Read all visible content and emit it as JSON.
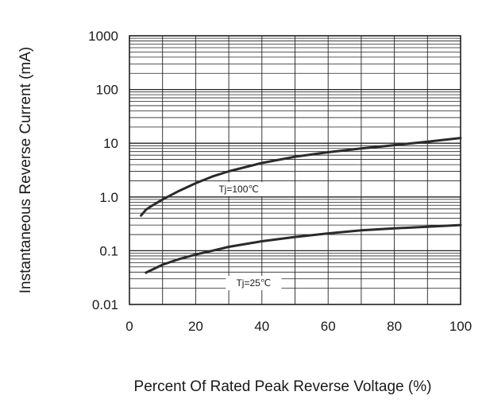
{
  "chart_data": {
    "type": "line",
    "title": "",
    "xlabel": "Percent  Of  Rated  Peak Reverse  Voltage (%)",
    "ylabel": "Instantaneous  Reverse Current (mA)",
    "x_scale": "linear",
    "y_scale": "log",
    "xlim": [
      0,
      100
    ],
    "ylim": [
      0.01,
      1000
    ],
    "grid": true,
    "x_ticks": [
      "0",
      "20",
      "40",
      "60",
      "80",
      "100"
    ],
    "y_ticks": [
      "0.01",
      "0.1",
      "1.0",
      "10",
      "100",
      "1000"
    ],
    "series": [
      {
        "name": "Tj=100℃",
        "x": [
          3.5,
          5,
          7,
          10,
          15,
          20,
          25,
          30,
          40,
          50,
          60,
          70,
          80,
          90,
          100
        ],
        "y": [
          0.45,
          0.58,
          0.7,
          0.9,
          1.3,
          1.8,
          2.4,
          3.0,
          4.3,
          5.6,
          6.8,
          8.0,
          9.2,
          10.7,
          12.5
        ]
      },
      {
        "name": "Tj=25℃",
        "x": [
          5,
          10,
          15,
          20,
          25,
          30,
          40,
          50,
          60,
          70,
          80,
          90,
          100
        ],
        "y": [
          0.039,
          0.055,
          0.07,
          0.085,
          0.1,
          0.118,
          0.15,
          0.18,
          0.21,
          0.24,
          0.26,
          0.28,
          0.3
        ]
      }
    ]
  }
}
